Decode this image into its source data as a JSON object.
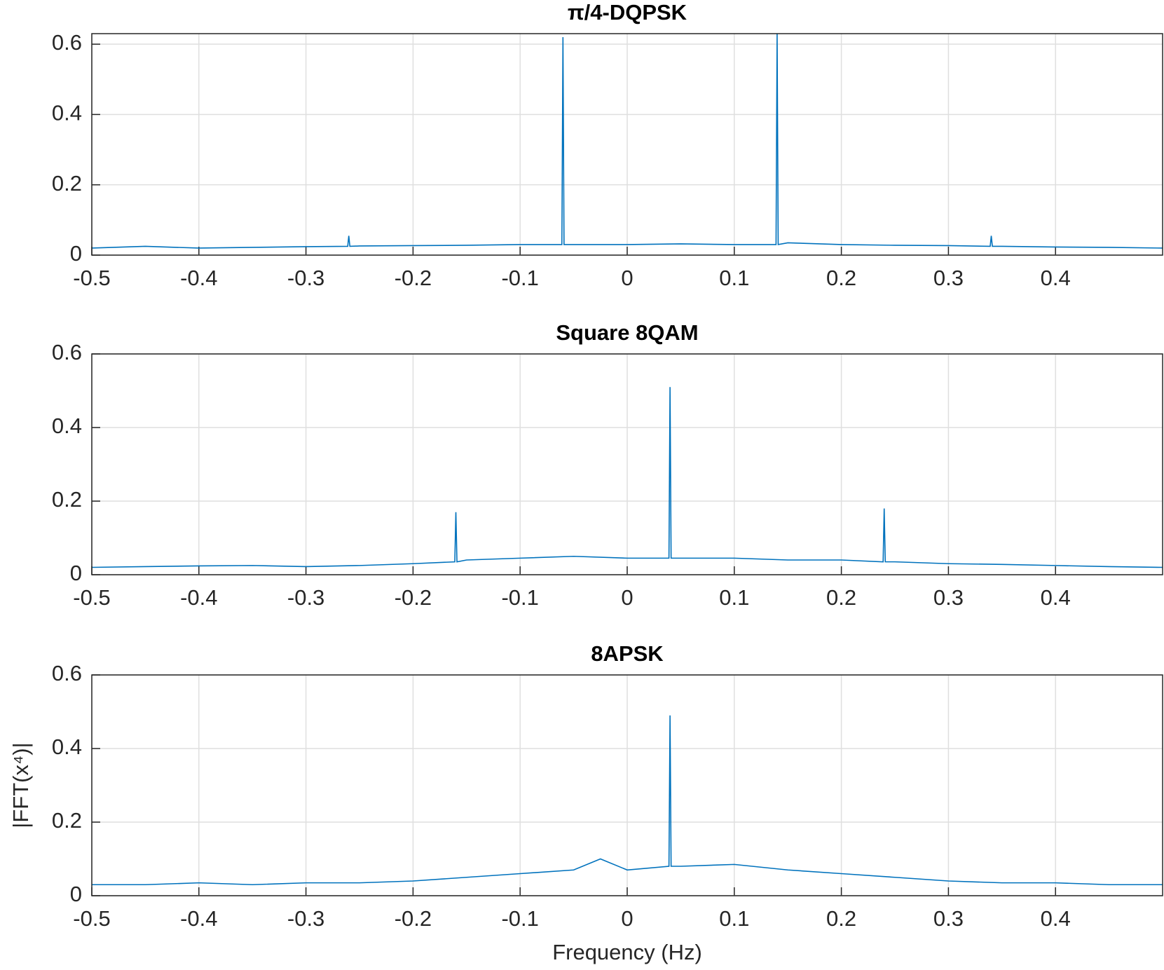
{
  "chart_data": [
    {
      "type": "line",
      "title": "π/4-DQPSK",
      "color": "#0072bd",
      "grid": true,
      "xlim": [
        -0.5,
        0.5
      ],
      "xticks": [
        -0.5,
        -0.4,
        -0.3,
        -0.2,
        -0.1,
        0,
        0.1,
        0.2,
        0.3,
        0.4
      ],
      "ylim": [
        0,
        0.63
      ],
      "yticks": [
        0,
        0.2,
        0.4,
        0.6
      ],
      "x": [
        -0.5,
        -0.45,
        -0.4,
        -0.35,
        -0.3,
        -0.261,
        -0.26,
        -0.259,
        -0.25,
        -0.2,
        -0.15,
        -0.1,
        -0.061,
        -0.06,
        -0.059,
        -0.05,
        0,
        0.05,
        0.1,
        0.139,
        0.14,
        0.141,
        0.15,
        0.2,
        0.25,
        0.3,
        0.339,
        0.34,
        0.341,
        0.35,
        0.4,
        0.45,
        0.5
      ],
      "values": [
        0.02,
        0.025,
        0.02,
        0.022,
        0.024,
        0.025,
        0.055,
        0.025,
        0.026,
        0.027,
        0.028,
        0.03,
        0.03,
        0.62,
        0.03,
        0.03,
        0.03,
        0.032,
        0.03,
        0.03,
        0.63,
        0.03,
        0.035,
        0.03,
        0.028,
        0.027,
        0.025,
        0.055,
        0.025,
        0.025,
        0.023,
        0.022,
        0.02
      ]
    },
    {
      "type": "line",
      "title": "Square 8QAM",
      "color": "#0072bd",
      "grid": true,
      "xlim": [
        -0.5,
        0.5
      ],
      "xticks": [
        -0.5,
        -0.4,
        -0.3,
        -0.2,
        -0.1,
        0,
        0.1,
        0.2,
        0.3,
        0.4
      ],
      "ylim": [
        0,
        0.6
      ],
      "yticks": [
        0,
        0.2,
        0.4,
        0.6
      ],
      "x": [
        -0.5,
        -0.45,
        -0.4,
        -0.35,
        -0.3,
        -0.25,
        -0.2,
        -0.161,
        -0.16,
        -0.159,
        -0.15,
        -0.1,
        -0.05,
        0,
        0.039,
        0.04,
        0.041,
        0.05,
        0.1,
        0.15,
        0.2,
        0.239,
        0.24,
        0.241,
        0.25,
        0.3,
        0.35,
        0.4,
        0.45,
        0.5
      ],
      "values": [
        0.02,
        0.022,
        0.024,
        0.025,
        0.022,
        0.025,
        0.03,
        0.035,
        0.17,
        0.035,
        0.04,
        0.045,
        0.05,
        0.045,
        0.045,
        0.51,
        0.045,
        0.045,
        0.045,
        0.04,
        0.04,
        0.035,
        0.18,
        0.035,
        0.035,
        0.03,
        0.028,
        0.025,
        0.022,
        0.02
      ]
    },
    {
      "type": "line",
      "title": "8APSK",
      "color": "#0072bd",
      "grid": true,
      "x_label": "Frequency (Hz)",
      "y_label": "|FFT(x⁴)|",
      "xlim": [
        -0.5,
        0.5
      ],
      "xticks": [
        -0.5,
        -0.4,
        -0.3,
        -0.2,
        -0.1,
        0,
        0.1,
        0.2,
        0.3,
        0.4
      ],
      "ylim": [
        0,
        0.6
      ],
      "yticks": [
        0,
        0.2,
        0.4,
        0.6
      ],
      "x": [
        -0.5,
        -0.45,
        -0.4,
        -0.35,
        -0.3,
        -0.25,
        -0.2,
        -0.15,
        -0.1,
        -0.05,
        -0.025,
        0,
        0.039,
        0.04,
        0.041,
        0.05,
        0.1,
        0.15,
        0.2,
        0.25,
        0.3,
        0.35,
        0.4,
        0.45,
        0.5
      ],
      "values": [
        0.03,
        0.03,
        0.035,
        0.03,
        0.035,
        0.035,
        0.04,
        0.05,
        0.06,
        0.07,
        0.1,
        0.07,
        0.08,
        0.49,
        0.08,
        0.08,
        0.085,
        0.07,
        0.06,
        0.05,
        0.04,
        0.035,
        0.035,
        0.03,
        0.03
      ]
    }
  ]
}
